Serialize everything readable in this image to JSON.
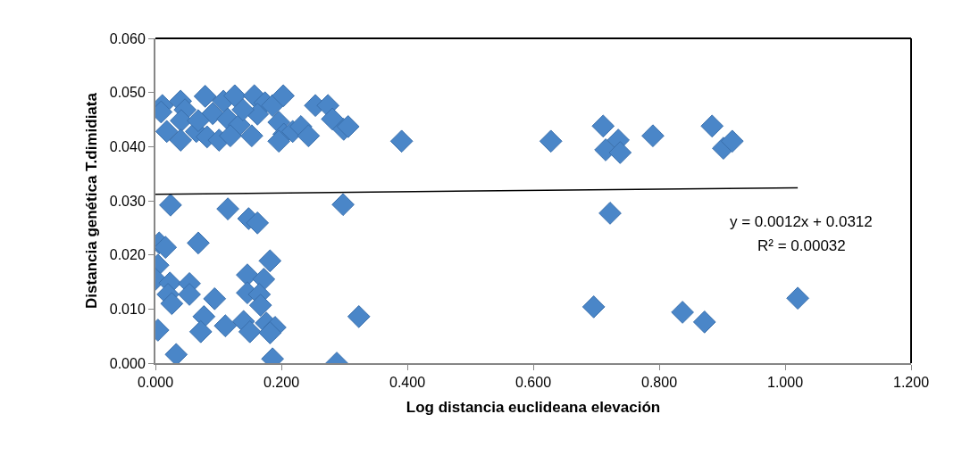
{
  "chart_data": {
    "type": "scatter",
    "xlabel": "Log distancia euclideana elevación",
    "ylabel": "Distancia genética T.dimidiata",
    "marker": "diamond",
    "grid": false,
    "xlim": [
      0,
      1.2
    ],
    "xticks": [
      {
        "value": 0,
        "label": "0.000"
      },
      {
        "value": 0.2,
        "label": "0.200"
      },
      {
        "value": 0.4,
        "label": "0.400"
      },
      {
        "value": 0.6,
        "label": "0.600"
      },
      {
        "value": 0.8,
        "label": "0.800"
      },
      {
        "value": 1,
        "label": "1.000"
      },
      {
        "value": 1.2,
        "label": "1.200"
      }
    ],
    "ylim": [
      0,
      0.06
    ],
    "yticks": [
      {
        "value": 0,
        "label": "0.000"
      },
      {
        "value": 0.01,
        "label": "0.010"
      },
      {
        "value": 0.02,
        "label": "0.020"
      },
      {
        "value": 0.03,
        "label": "0.030"
      },
      {
        "value": 0.04,
        "label": "0.040"
      },
      {
        "value": 0.05,
        "label": "0.050"
      },
      {
        "value": 0.06,
        "label": "0.060"
      }
    ],
    "annotations": [
      "y = 0.0012x + 0.0312",
      "R² = 0.00032"
    ],
    "series": [
      {
        "color": "#4a86c8",
        "x": [
          0.024,
          0.115,
          0.148,
          0.162,
          0.298,
          0.006,
          0.016,
          0.068,
          0.004,
          0.182,
          0.0,
          0.023,
          0.054,
          0.146,
          0.172,
          0.02,
          0.054,
          0.026,
          0.146,
          0.165,
          0.167,
          0.094,
          0.077,
          0.072,
          0.111,
          0.14,
          0.15,
          0.176,
          0.19,
          0.182,
          0.004,
          0.033,
          0.186,
          0.288,
          0.323,
          0.722,
          0.696,
          0.837,
          0.872,
          1.02,
          0.011,
          0.04,
          0.047,
          0.009,
          0.018,
          0.041,
          0.04,
          0.065,
          0.082,
          0.079,
          0.091,
          0.108,
          0.101,
          0.126,
          0.115,
          0.133,
          0.119,
          0.157,
          0.153,
          0.174,
          0.186,
          0.203,
          0.196,
          0.162,
          0.204,
          0.218,
          0.231,
          0.243,
          0.196,
          0.254,
          0.274,
          0.281,
          0.299,
          0.306,
          0.139,
          0.068,
          0.391,
          0.628,
          0.711,
          0.735,
          0.715,
          0.738,
          0.79,
          0.884,
          0.902,
          0.916
        ],
        "values": [
          0.0292,
          0.0285,
          0.0267,
          0.0259,
          0.0293,
          0.0222,
          0.0214,
          0.0222,
          0.0181,
          0.0189,
          0.0155,
          0.0148,
          0.0147,
          0.0163,
          0.0155,
          0.0127,
          0.0127,
          0.011,
          0.013,
          0.0127,
          0.0107,
          0.0119,
          0.0086,
          0.0058,
          0.0069,
          0.0077,
          0.0058,
          0.0074,
          0.0066,
          0.0056,
          0.0061,
          0.0016,
          0.0008,
          0.0,
          0.0086,
          0.0277,
          0.0104,
          0.0094,
          0.0076,
          0.012,
          0.0476,
          0.0484,
          0.0468,
          0.0464,
          0.0428,
          0.0448,
          0.0412,
          0.0428,
          0.0418,
          0.0493,
          0.0461,
          0.0484,
          0.0412,
          0.0494,
          0.0451,
          0.044,
          0.042,
          0.0494,
          0.042,
          0.0481,
          0.0476,
          0.0494,
          0.0445,
          0.046,
          0.0423,
          0.0428,
          0.0437,
          0.042,
          0.041,
          0.0476,
          0.0476,
          0.0451,
          0.0432,
          0.0437,
          0.0468,
          0.0448,
          0.041,
          0.041,
          0.0438,
          0.0412,
          0.0394,
          0.0389,
          0.042,
          0.0438,
          0.0397,
          0.041
        ]
      },
      {
        "type": "line",
        "marker": "none",
        "color": "#000000",
        "x": [
          0,
          1.02
        ],
        "values": [
          0.0312,
          0.0324
        ]
      }
    ]
  }
}
